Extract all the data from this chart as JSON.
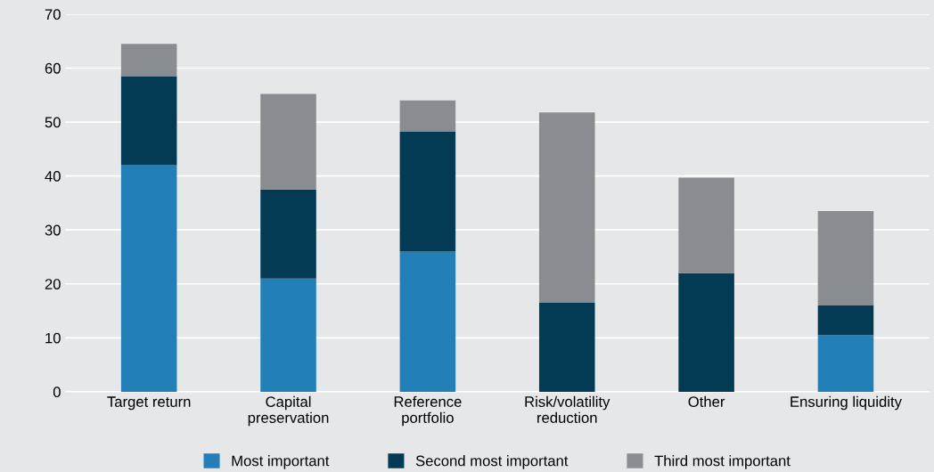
{
  "chart_data": {
    "type": "bar",
    "stacked": true,
    "categories": [
      "Target return",
      "Capital\npreservation",
      "Reference\nportfolio",
      "Risk/volatility\nreduction",
      "Other",
      "Ensuring liquidity"
    ],
    "series": [
      {
        "name": "Most important",
        "color": "#237fb8",
        "values": [
          42,
          21,
          26,
          0,
          0,
          10.5
        ]
      },
      {
        "name": "Second most important",
        "color": "#033a54",
        "values": [
          16.5,
          16.5,
          22.2,
          16.5,
          22,
          5.5
        ]
      },
      {
        "name": "Third most important",
        "color": "#898c90",
        "values": [
          6,
          17.7,
          5.8,
          35.3,
          17.7,
          17.5
        ]
      }
    ],
    "ylim": [
      0,
      70
    ],
    "yticks": [
      0,
      10,
      20,
      30,
      40,
      50,
      60,
      70
    ],
    "grid": "y",
    "legend": "bottom"
  }
}
